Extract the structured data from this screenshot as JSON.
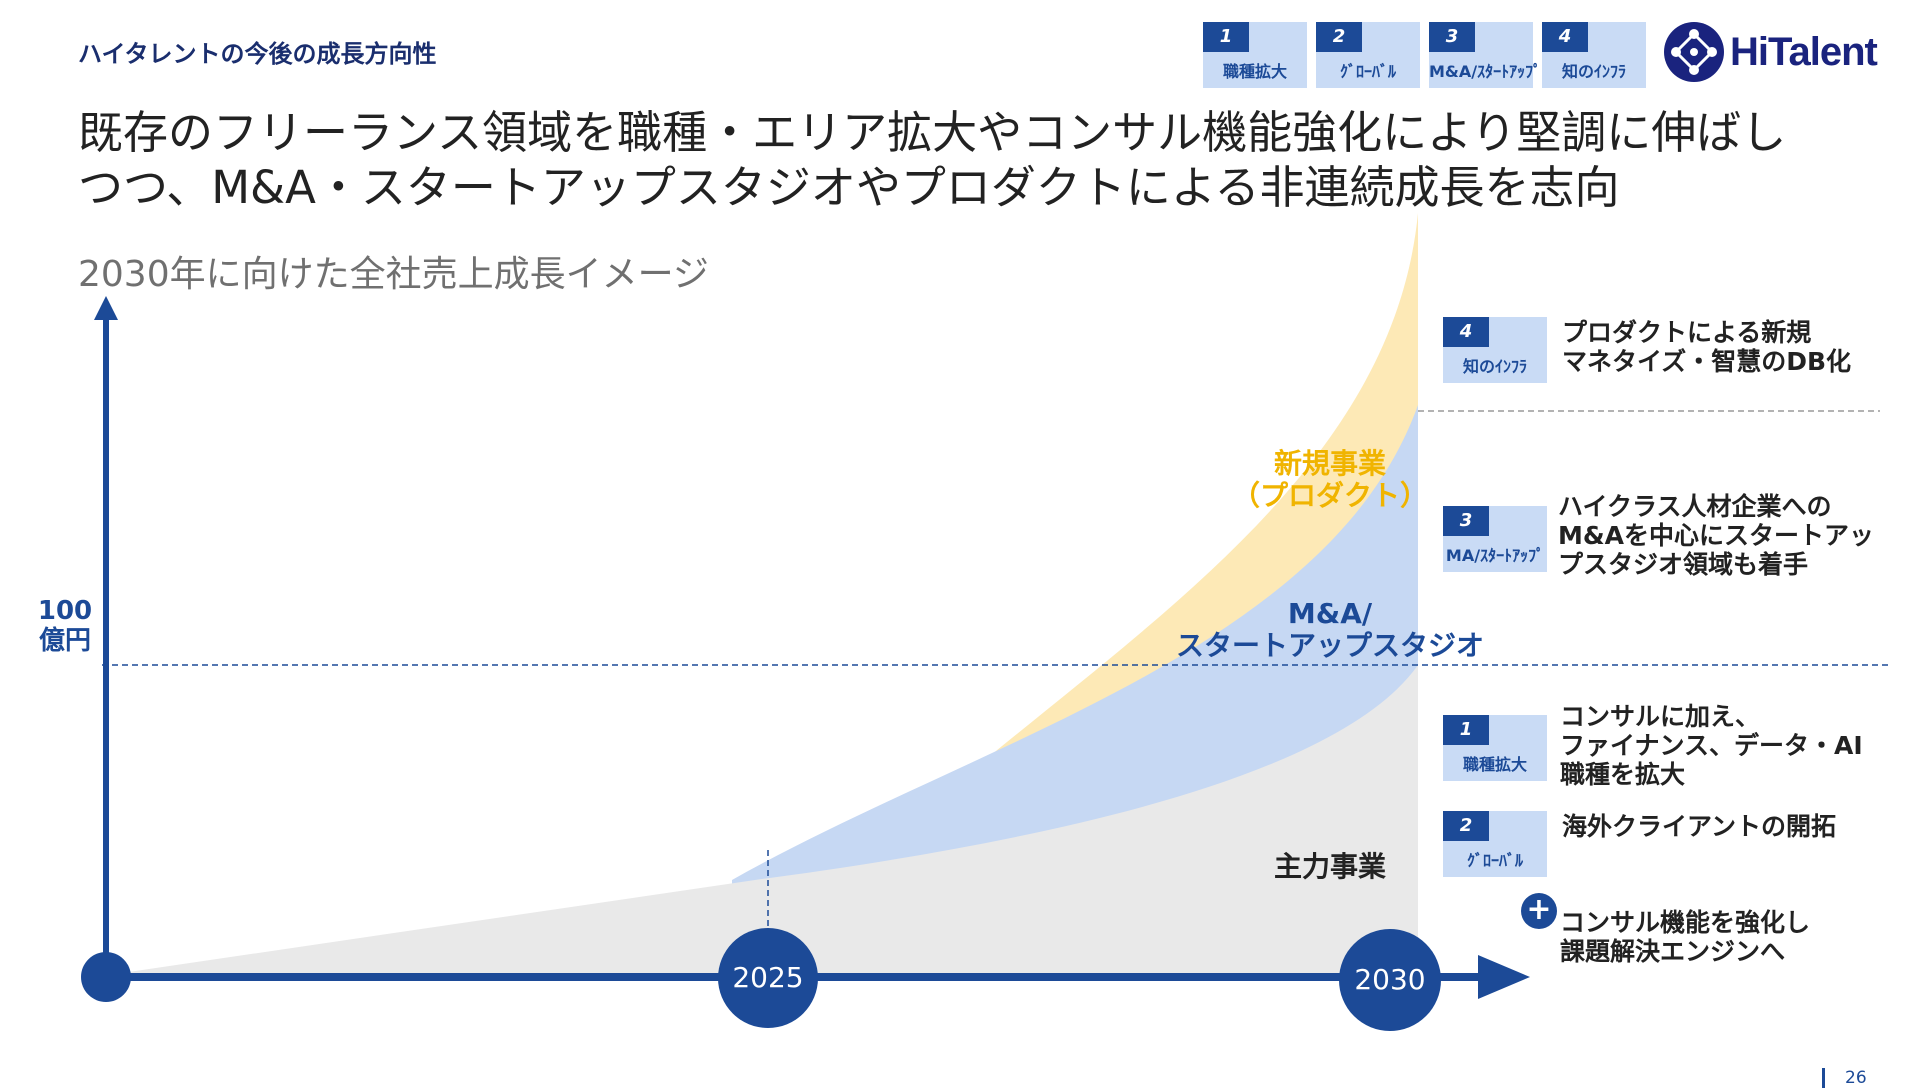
{
  "header": {
    "section_title": "ハイタレントの今後の成長方向性",
    "headline_line1": "既存のフリーランス領域を職種・エリア拡大やコンサル機能強化により堅調に伸ばし",
    "headline_line2": "つつ、M&A・スタートアップスタジオやプロダクトによる非連続成長を志向",
    "subtitle": "2030年に向けた全社売上成長イメージ"
  },
  "logo": {
    "text": "HiTalent",
    "icon": "network-logo-icon"
  },
  "strategy_tags": [
    {
      "num": "1",
      "label": "職種拡大"
    },
    {
      "num": "2",
      "label": "ｸﾞﾛｰﾊﾞﾙ"
    },
    {
      "num": "3",
      "label": "M&A/ｽﾀｰﾄｱｯﾌﾟ"
    },
    {
      "num": "4",
      "label": "知のｲﾝﾌﾗ"
    }
  ],
  "chart": {
    "y_marker_line1": "100",
    "y_marker_line2": "億円",
    "years": [
      "2025",
      "2030"
    ],
    "regions": {
      "new_business_line1": "新規事業",
      "new_business_line2": "（プロダクト）",
      "ma_line1": "M&A/",
      "ma_line2": "スタートアップスタジオ",
      "core": "主力事業"
    },
    "colors": {
      "core": "#e9e9e9",
      "ma": "#c6d8f3",
      "new": "#fde9b6",
      "axis": "#1c4a97",
      "new_text": "#f0b400"
    }
  },
  "descriptions": [
    {
      "tag_num": "4",
      "tag_label": "知のｲﾝﾌﾗ",
      "lines": [
        "プロダクトによる新規",
        "マネタイズ・智慧のDB化"
      ]
    },
    {
      "tag_num": "3",
      "tag_label": "MA/ｽﾀｰﾄｱｯﾌﾟ",
      "lines": [
        "ハイクラス人材企業への",
        "M&Aを中心にスタートアッ",
        "プスタジオ領域も着手"
      ]
    },
    {
      "tag_num": "1",
      "tag_label": "職種拡大",
      "lines": [
        "コンサルに加え、",
        "ファイナンス、データ・AI",
        "職種を拡大"
      ]
    },
    {
      "tag_num": "2",
      "tag_label": "ｸﾞﾛｰﾊﾞﾙ",
      "lines": [
        "海外クライアントの開拓"
      ]
    },
    {
      "tag_num": "+",
      "tag_label": "",
      "lines": [
        "コンサル機能を強化し",
        "課題解決エンジンへ"
      ]
    }
  ],
  "page_number": "26"
}
